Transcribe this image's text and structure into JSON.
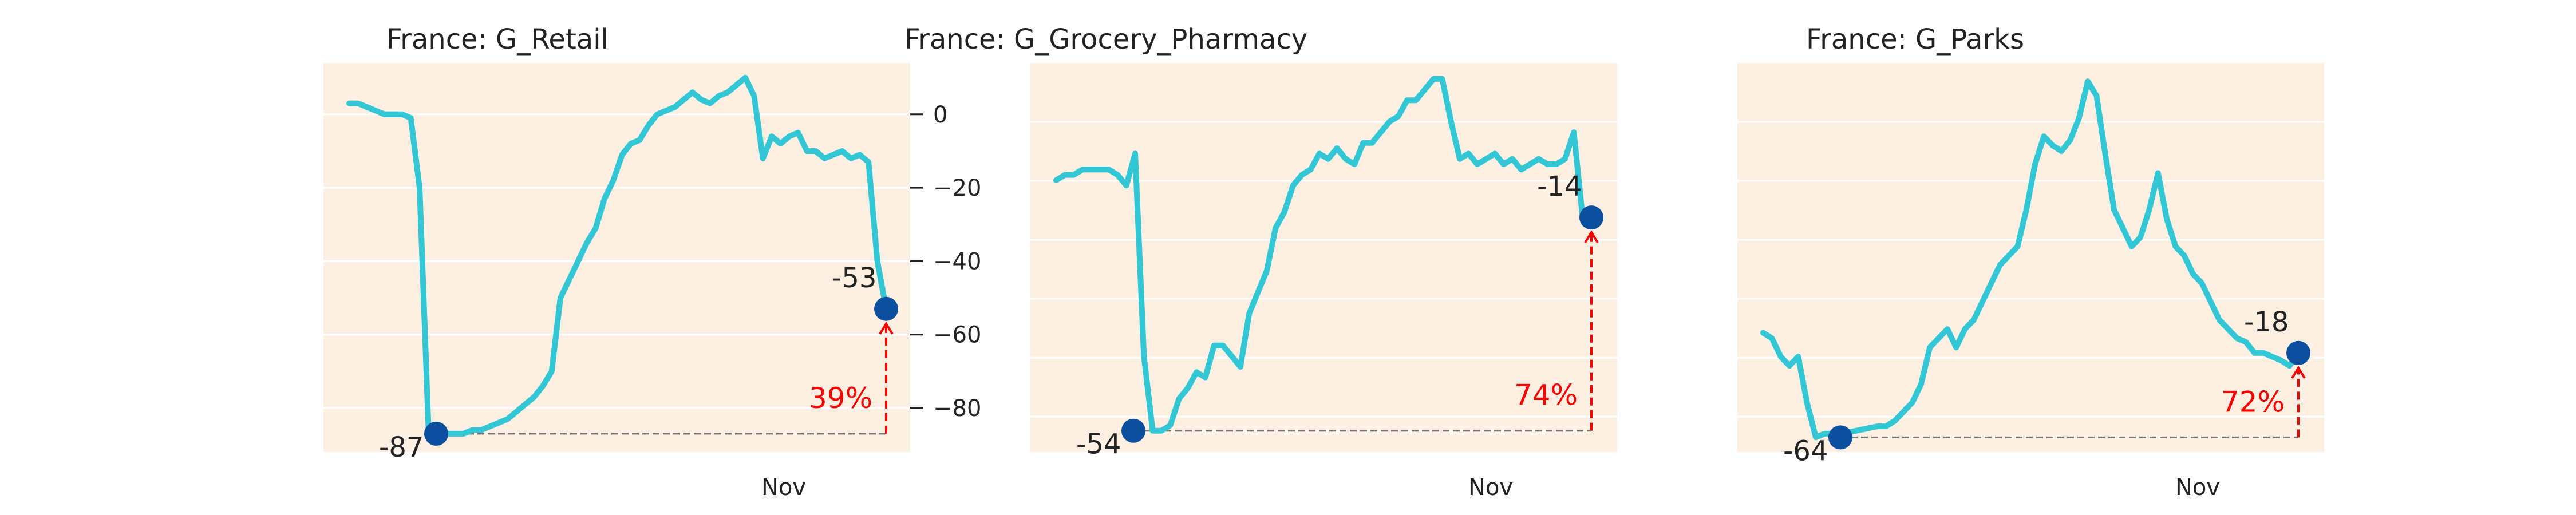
{
  "chart_data": [
    {
      "type": "line",
      "title": "France: G_Retail",
      "ylim": [
        -92,
        14
      ],
      "yticks": [
        0,
        -20,
        -40,
        -60,
        -80
      ],
      "ytick_labels": [
        "0",
        "−20",
        "−40",
        "−60",
        "−80"
      ],
      "xtick_label": "Nov",
      "grid": true,
      "line_color": "#33c7d6",
      "min": {
        "value": -87,
        "label": "-87"
      },
      "end": {
        "value": -53,
        "label": "-53"
      },
      "recovery_label": "39%",
      "y": [
        3,
        3,
        2,
        1,
        0,
        0,
        0,
        -1,
        -20,
        -85,
        -87,
        -87,
        -87,
        -87,
        -86,
        -86,
        -85,
        -84,
        -83,
        -81,
        -79,
        -77,
        -74,
        -70,
        -50,
        -45,
        -40,
        -35,
        -31,
        -23,
        -18,
        -11,
        -8,
        -7,
        -3,
        0,
        1,
        2,
        4,
        6,
        4,
        3,
        5,
        6,
        8,
        10,
        5,
        -12,
        -6,
        -8,
        -6,
        -5,
        -10,
        -10,
        -12,
        -11,
        -10,
        -12,
        -11,
        -13,
        -40,
        -53
      ]
    },
    {
      "type": "line",
      "title": "France: G_Grocery_Pharmacy",
      "ylim": [
        -58,
        15
      ],
      "xtick_label": "Nov",
      "grid": true,
      "line_color": "#33c7d6",
      "min": {
        "value": -54,
        "label": "-54"
      },
      "end": {
        "value": -14,
        "label": "-14"
      },
      "recovery_label": "74%",
      "y": [
        -7,
        -6,
        -6,
        -5,
        -5,
        -5,
        -5,
        -6,
        -8,
        -2,
        -40,
        -54,
        -54,
        -53,
        -48,
        -46,
        -43,
        -44,
        -38,
        -38,
        -40,
        -42,
        -32,
        -28,
        -24,
        -16,
        -13,
        -8,
        -6,
        -5,
        -2,
        -3,
        -1,
        -3,
        -4,
        0,
        0,
        2,
        4,
        5,
        8,
        8,
        10,
        12,
        12,
        4,
        -3,
        -2,
        -4,
        -3,
        -2,
        -4,
        -3,
        -5,
        -4,
        -3,
        -4,
        -4,
        -3,
        2,
        -14,
        -14
      ]
    },
    {
      "type": "line",
      "title": "France: G_Parks",
      "ylim": [
        -72,
        140
      ],
      "xtick_label": "Nov",
      "grid": true,
      "line_color": "#33c7d6",
      "min": {
        "value": -64,
        "label": "-64"
      },
      "end": {
        "value": -18,
        "label": "-18"
      },
      "recovery_label": "72%",
      "y": [
        -7,
        -10,
        -20,
        -25,
        -20,
        -45,
        -64,
        -62,
        -62,
        -62,
        -61,
        -60,
        -59,
        -58,
        -58,
        -55,
        -50,
        -45,
        -35,
        -15,
        -10,
        -5,
        -15,
        -5,
        0,
        10,
        20,
        30,
        35,
        40,
        60,
        85,
        100,
        95,
        92,
        98,
        110,
        130,
        122,
        90,
        60,
        50,
        40,
        45,
        60,
        80,
        55,
        40,
        35,
        25,
        20,
        10,
        0,
        -5,
        -10,
        -12,
        -18,
        -18,
        -20,
        -22,
        -25,
        -18
      ]
    }
  ]
}
